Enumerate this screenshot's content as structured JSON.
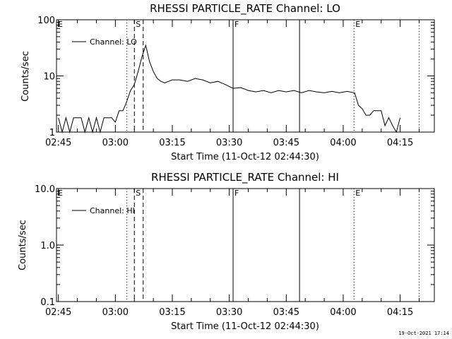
{
  "footer_timestamp": "19-Oct-2021 17:14",
  "colors": {
    "background": "#ffffff",
    "ink": "#000000"
  },
  "chart_data": [
    {
      "type": "line",
      "title": "RHESSI PARTICLE_RATE Channel: LO",
      "xlabel": "Start Time (11-Oct-12 02:44:30)",
      "ylabel": "Counts/sec",
      "y_scale": "log",
      "ylim": [
        1,
        100
      ],
      "ytick_labels": [
        "1",
        "10",
        "100"
      ],
      "xlim": [
        "02:44:30",
        "04:24:00"
      ],
      "xtick_labels": [
        "02:45",
        "03:00",
        "03:15",
        "03:30",
        "03:45",
        "04:00",
        "04:15"
      ],
      "legend": {
        "label": "Channel: LO",
        "placement": "top-left"
      },
      "markers": [
        {
          "label": "E",
          "time": "02:44:30",
          "style": "none"
        },
        {
          "label": "S",
          "time": "03:05:00",
          "style": "dashed"
        },
        {
          "label": "F",
          "time": "03:31:00",
          "style": "solid"
        },
        {
          "label": "E",
          "time": "04:02:50",
          "style": "dotted"
        }
      ],
      "extra_lines": [
        {
          "time": "03:03:00",
          "style": "dotted"
        },
        {
          "time": "03:07:20",
          "style": "dashed"
        },
        {
          "time": "03:48:30",
          "style": "solid"
        },
        {
          "time": "04:20:00",
          "style": "dotted"
        }
      ],
      "grid": false,
      "series": [
        {
          "name": "Channel: LO",
          "x": [
            "02:45",
            "02:46",
            "02:47",
            "02:48",
            "02:49",
            "02:50",
            "02:51",
            "02:52",
            "02:53",
            "02:54",
            "02:55",
            "02:56",
            "02:57",
            "02:58",
            "02:59",
            "03:00",
            "03:01",
            "03:02",
            "03:03",
            "03:04",
            "03:05",
            "03:06",
            "03:07",
            "03:08",
            "03:09",
            "03:10",
            "03:11",
            "03:12",
            "03:13",
            "03:14",
            "03:15",
            "03:17",
            "03:19",
            "03:21",
            "03:23",
            "03:25",
            "03:27",
            "03:29",
            "03:31",
            "03:33",
            "03:35",
            "03:37",
            "03:39",
            "03:41",
            "03:43",
            "03:45",
            "03:47",
            "03:49",
            "03:51",
            "03:53",
            "03:55",
            "03:57",
            "03:59",
            "04:01",
            "04:03",
            "04:04",
            "04:05",
            "04:06",
            "04:07",
            "04:08",
            "04:09",
            "04:10",
            "04:11",
            "04:12",
            "04:13",
            "04:14",
            "04:15"
          ],
          "values": [
            1.8,
            1.0,
            1.8,
            1.0,
            1.8,
            1.8,
            1.8,
            1.0,
            1.8,
            1.0,
            1.8,
            1.0,
            1.8,
            1.8,
            1.8,
            1.5,
            2.4,
            2.4,
            3.5,
            5.5,
            7.0,
            12.0,
            22.0,
            35.0,
            18.0,
            12.0,
            9.0,
            8.0,
            7.5,
            8.0,
            8.5,
            8.5,
            8.0,
            9.0,
            8.5,
            7.5,
            8.0,
            7.0,
            6.0,
            6.2,
            5.5,
            5.2,
            5.5,
            5.0,
            5.5,
            5.2,
            5.5,
            5.0,
            5.5,
            5.2,
            5.0,
            5.3,
            5.0,
            5.3,
            5.0,
            3.0,
            2.6,
            2.0,
            2.0,
            2.4,
            2.4,
            2.4,
            1.3,
            1.8,
            1.3,
            1.0,
            1.8
          ]
        }
      ]
    },
    {
      "type": "line",
      "title": "RHESSI PARTICLE_RATE Channel: HI",
      "xlabel": "Start Time (11-Oct-12 02:44:30)",
      "ylabel": "Counts/sec",
      "y_scale": "log",
      "ylim": [
        0.1,
        10
      ],
      "ytick_labels": [
        "0.1",
        "1.0",
        "10.0"
      ],
      "xlim": [
        "02:44:30",
        "04:24:00"
      ],
      "xtick_labels": [
        "02:45",
        "03:00",
        "03:15",
        "03:30",
        "03:45",
        "04:00",
        "04:15"
      ],
      "legend": {
        "label": "Channel: HI",
        "placement": "top-left"
      },
      "markers": [
        {
          "label": "E",
          "time": "02:44:30",
          "style": "none"
        },
        {
          "label": "S",
          "time": "03:05:00",
          "style": "dashed"
        },
        {
          "label": "F",
          "time": "03:31:00",
          "style": "solid"
        },
        {
          "label": "E",
          "time": "04:02:50",
          "style": "dotted"
        }
      ],
      "extra_lines": [
        {
          "time": "03:03:00",
          "style": "dotted"
        },
        {
          "time": "03:07:20",
          "style": "dashed"
        },
        {
          "time": "03:48:30",
          "style": "solid"
        },
        {
          "time": "04:20:00",
          "style": "dotted"
        }
      ],
      "grid": false,
      "series": [
        {
          "name": "Channel: HI",
          "x": [],
          "values": []
        }
      ]
    }
  ]
}
